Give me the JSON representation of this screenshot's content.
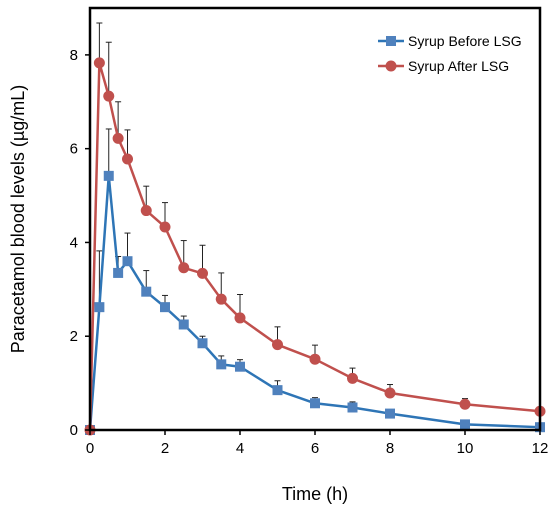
{
  "chart_data": {
    "type": "line",
    "title": "",
    "xlabel": "Time (h)",
    "ylabel": "Paracetamol blood levels (µg/mL)",
    "xlim": [
      0,
      12
    ],
    "ylim": [
      0,
      9
    ],
    "xticks": [
      0,
      2,
      4,
      6,
      8,
      10,
      12
    ],
    "yticks": [
      0,
      2,
      4,
      6,
      8
    ],
    "grid": false,
    "legend_position": "top-right",
    "x": [
      0,
      0.25,
      0.5,
      0.75,
      1,
      1.5,
      2,
      2.5,
      3,
      3.5,
      4,
      5,
      6,
      7,
      8,
      10,
      12
    ],
    "series": [
      {
        "name": "Syrup Before LSG",
        "color": "#2e75b6",
        "marker_color": "#4f81bd",
        "marker": "square",
        "values": [
          0,
          2.62,
          5.42,
          3.35,
          3.6,
          2.95,
          2.62,
          2.25,
          1.85,
          1.4,
          1.35,
          0.85,
          0.57,
          0.48,
          0.35,
          0.12,
          0.06
        ],
        "error": [
          0,
          1.2,
          1.0,
          0.35,
          0.6,
          0.45,
          0.25,
          0.18,
          0.15,
          0.18,
          0.15,
          0.2,
          0.12,
          0.12,
          0.08,
          0.05,
          0.03
        ]
      },
      {
        "name": "Syrup After LSG",
        "color": "#c0504d",
        "marker_color": "#c0504d",
        "marker": "circle",
        "values": [
          0,
          7.83,
          7.12,
          6.22,
          5.78,
          4.68,
          4.33,
          3.46,
          3.34,
          2.79,
          2.39,
          1.82,
          1.51,
          1.1,
          0.79,
          0.55,
          0.4
        ],
        "error": [
          0,
          0.85,
          1.15,
          0.78,
          0.62,
          0.52,
          0.52,
          0.58,
          0.6,
          0.56,
          0.5,
          0.38,
          0.3,
          0.22,
          0.18,
          0.12,
          0.06
        ]
      }
    ]
  }
}
